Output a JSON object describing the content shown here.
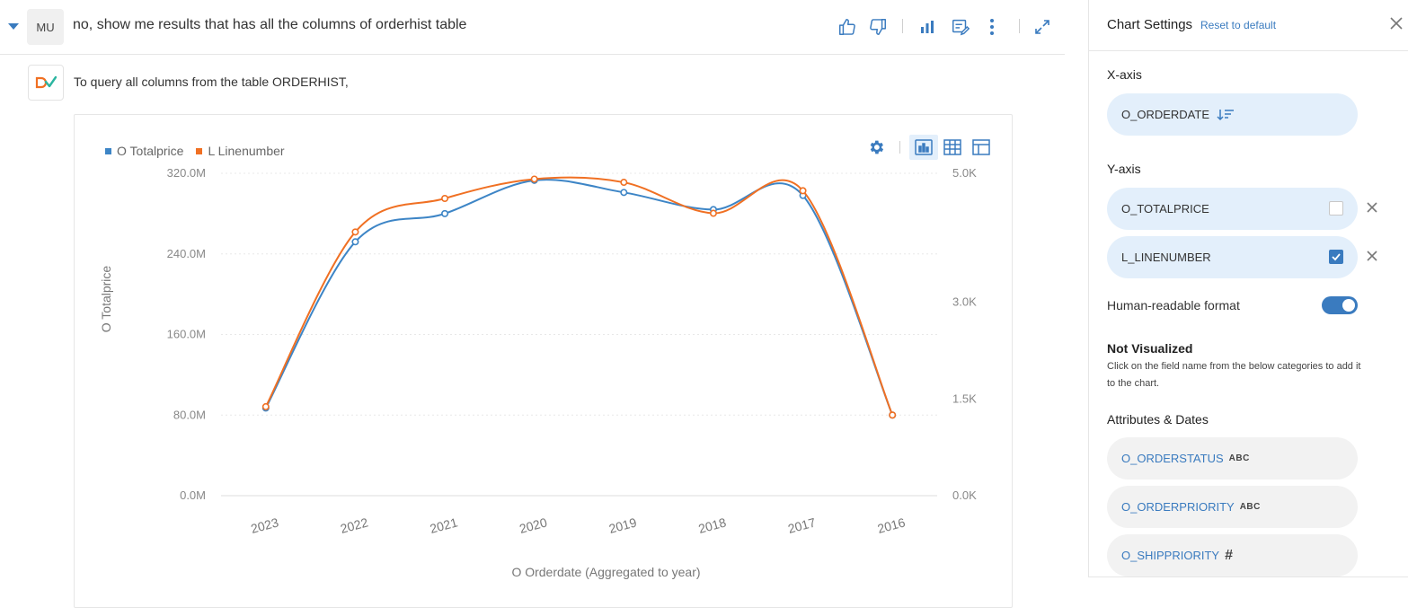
{
  "query": {
    "user_initials": "MU",
    "text": "no, show me results that has all the columns of orderhist table"
  },
  "answer": {
    "text": "To query all columns from the table ORDERHIST,"
  },
  "chart_data": {
    "type": "line",
    "categories": [
      "2023",
      "2022",
      "2021",
      "2020",
      "2019",
      "2018",
      "2017",
      "2016"
    ],
    "series": [
      {
        "name": "O Totalprice",
        "axis": "left",
        "color": "#3d85c6",
        "values": [
          87,
          252,
          280,
          313,
          301,
          284,
          298,
          80
        ]
      },
      {
        "name": "L Linenumber",
        "axis": "right",
        "color": "#f07023",
        "values": [
          1380,
          4090,
          4610,
          4910,
          4860,
          4380,
          4730,
          1250
        ]
      }
    ],
    "xlabel": "O Orderdate (Aggregated to year)",
    "ylabel": "O Totalprice",
    "y_left_ticks": [
      "0.0M",
      "80.0M",
      "160.0M",
      "240.0M",
      "320.0M"
    ],
    "y_right_ticks": [
      "0.0K",
      "1.5K",
      "3.0K",
      "5.0K"
    ],
    "y_right_tick_values": [
      0,
      1500,
      3000,
      5000
    ],
    "ylim_left": [
      0,
      320
    ],
    "ylim_right": [
      0,
      5000
    ],
    "legend": "top-left",
    "grid": true
  },
  "settings": {
    "title": "Chart Settings",
    "reset_label": "Reset to default",
    "x_axis_label": "X-axis",
    "x_field": "O_ORDERDATE",
    "y_axis_label": "Y-axis",
    "y_fields": [
      {
        "name": "O_TOTALPRICE",
        "checked": false
      },
      {
        "name": "L_LINENUMBER",
        "checked": true
      }
    ],
    "human_readable_label": "Human-readable format",
    "human_readable_on": true,
    "not_visualized_title": "Not Visualized",
    "not_visualized_help": "Click on the field name from the below categories to add it to the chart.",
    "attributes_title": "Attributes & Dates",
    "attributes": [
      {
        "name": "O_ORDERSTATUS",
        "type": "ABC"
      },
      {
        "name": "O_ORDERPRIORITY",
        "type": "ABC"
      },
      {
        "name": "O_SHIPPRIORITY",
        "type": "#"
      }
    ]
  }
}
